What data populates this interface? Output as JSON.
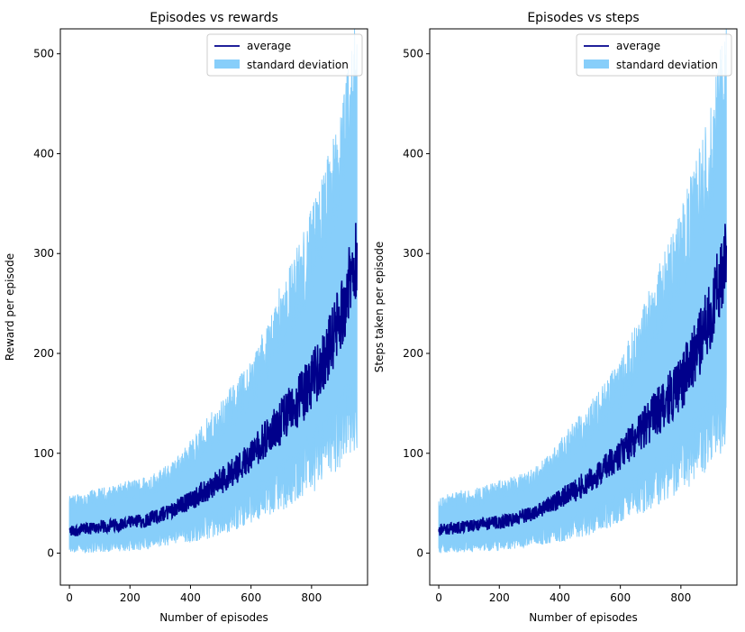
{
  "colors": {
    "average": "#00008b",
    "standard_deviation": "#87cefa",
    "axes": "#000000",
    "background": "#ffffff"
  },
  "chart_data": [
    {
      "type": "line",
      "title": "Episodes vs rewards",
      "xlabel": "Number of episodes",
      "ylabel": "Reward per episode",
      "xlim": [
        -30,
        985
      ],
      "ylim": [
        -32,
        525
      ],
      "xticks": [
        0,
        200,
        400,
        600,
        800
      ],
      "yticks": [
        0,
        100,
        200,
        300,
        400,
        500
      ],
      "grid": false,
      "legend": {
        "position": "top-right",
        "entries": [
          "average",
          "standard deviation"
        ]
      },
      "series": [
        {
          "name": "average",
          "kind": "line",
          "x": [
            0,
            50,
            100,
            150,
            200,
            250,
            300,
            350,
            400,
            450,
            500,
            550,
            600,
            650,
            700,
            750,
            800,
            850,
            900,
            950
          ],
          "values": [
            22,
            24,
            26,
            28,
            30,
            33,
            38,
            45,
            53,
            62,
            72,
            84,
            98,
            115,
            132,
            150,
            170,
            200,
            240,
            300
          ]
        },
        {
          "name": "standard deviation",
          "kind": "band",
          "x": [
            0,
            50,
            100,
            150,
            200,
            250,
            300,
            350,
            400,
            450,
            500,
            550,
            600,
            650,
            700,
            750,
            800,
            850,
            900,
            950
          ],
          "lower": [
            6,
            7,
            8,
            9,
            10,
            12,
            15,
            18,
            22,
            27,
            33,
            40,
            48,
            58,
            68,
            80,
            92,
            108,
            125,
            150
          ],
          "upper": [
            48,
            52,
            55,
            58,
            62,
            66,
            72,
            82,
            98,
            115,
            132,
            150,
            170,
            200,
            235,
            265,
            300,
            345,
            395,
            480
          ]
        }
      ]
    },
    {
      "type": "line",
      "title": "Episodes vs steps",
      "xlabel": "Number of episodes",
      "ylabel": "Steps taken per episode",
      "xlim": [
        -30,
        985
      ],
      "ylim": [
        -32,
        525
      ],
      "xticks": [
        0,
        200,
        400,
        600,
        800
      ],
      "yticks": [
        0,
        100,
        200,
        300,
        400,
        500
      ],
      "grid": false,
      "legend": {
        "position": "top-right",
        "entries": [
          "average",
          "standard deviation"
        ]
      },
      "series": [
        {
          "name": "average",
          "kind": "line",
          "x": [
            0,
            50,
            100,
            150,
            200,
            250,
            300,
            350,
            400,
            450,
            500,
            550,
            600,
            650,
            700,
            750,
            800,
            850,
            900,
            950
          ],
          "values": [
            23,
            25,
            27,
            29,
            31,
            34,
            39,
            46,
            54,
            63,
            73,
            85,
            99,
            116,
            133,
            151,
            171,
            201,
            241,
            301
          ]
        },
        {
          "name": "standard deviation",
          "kind": "band",
          "x": [
            0,
            50,
            100,
            150,
            200,
            250,
            300,
            350,
            400,
            450,
            500,
            550,
            600,
            650,
            700,
            750,
            800,
            850,
            900,
            950
          ],
          "lower": [
            6,
            7,
            8,
            9,
            10,
            12,
            15,
            18,
            22,
            27,
            33,
            40,
            48,
            58,
            68,
            80,
            92,
            108,
            125,
            150
          ],
          "upper": [
            48,
            52,
            55,
            58,
            62,
            66,
            72,
            82,
            98,
            115,
            132,
            150,
            170,
            200,
            235,
            265,
            300,
            345,
            395,
            480
          ]
        }
      ]
    }
  ]
}
